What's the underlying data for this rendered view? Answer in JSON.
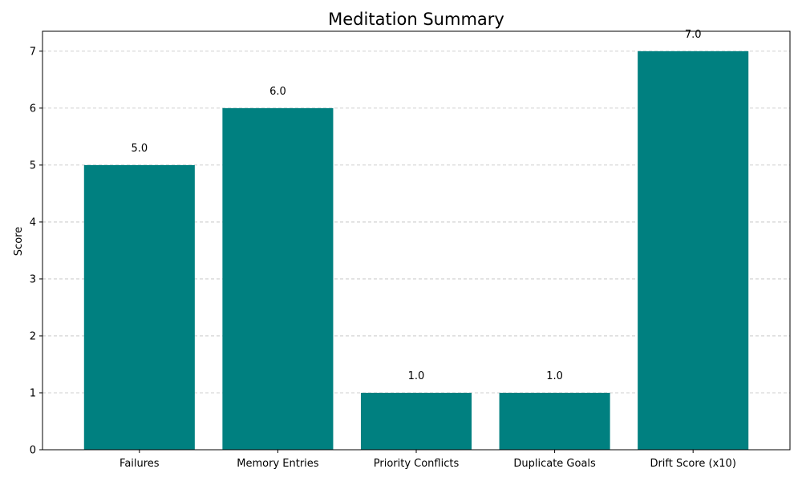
{
  "chart_data": {
    "type": "bar",
    "title": "Meditation Summary",
    "xlabel": "",
    "ylabel": "Score",
    "categories": [
      "Failures",
      "Memory Entries",
      "Priority Conflicts",
      "Duplicate Goals",
      "Drift Score (x10)"
    ],
    "values": [
      5.0,
      6.0,
      1.0,
      1.0,
      7.0
    ],
    "value_labels": [
      "5.0",
      "6.0",
      "1.0",
      "1.0",
      "7.0"
    ],
    "ylim": [
      0,
      7.35
    ],
    "yticks": [
      "0",
      "1",
      "2",
      "3",
      "4",
      "5",
      "6",
      "7"
    ],
    "grid": "y-dashed",
    "colors": {
      "bar": "#008080",
      "grid": "#c0c0c0",
      "axis": "#000000"
    }
  }
}
